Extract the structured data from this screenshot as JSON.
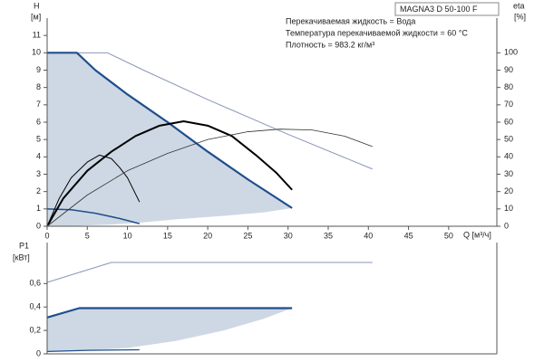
{
  "chart_data": [
    {
      "type": "line",
      "model": "MAGNA3 D 50-100 F",
      "notes": [
        "Перекачиваемая жидкость = Вода",
        "Температура перекачиваемой жидкости = 60 °C",
        "Плотность = 983.2 кг/м³"
      ],
      "y_label": "H",
      "y_unit": "[м]",
      "y2_label": "eta",
      "y2_unit": "[%]",
      "x_label": "Q [м³/ч]",
      "xlim": [
        0,
        56
      ],
      "xticks": [
        0,
        5,
        10,
        15,
        20,
        25,
        30,
        35,
        40,
        45,
        50
      ],
      "ylim": [
        0,
        12
      ],
      "yticks": [
        0,
        1,
        2,
        3,
        4,
        5,
        6,
        7,
        8,
        9,
        10,
        11
      ],
      "y2lim": [
        0,
        120
      ],
      "y2ticks": [
        0,
        10,
        20,
        30,
        40,
        50,
        60,
        70,
        80,
        90,
        100
      ],
      "series": [
        {
          "kind": "area",
          "color": "#cdd8e4",
          "x": [
            0,
            3.7,
            6,
            10,
            15,
            20,
            25,
            30.5,
            27,
            22,
            16,
            11.5,
            8,
            4,
            0
          ],
          "values": [
            10,
            10,
            9,
            7.6,
            6,
            4.3,
            2.7,
            1.05,
            0.8,
            0.6,
            0.4,
            0.2,
            0.1,
            0.03,
            0
          ]
        },
        {
          "color": "#8a96b8",
          "line_width": 1,
          "x": [
            0,
            7.5,
            12,
            20,
            30,
            40.5
          ],
          "values": [
            10,
            10,
            9,
            7.3,
            5.3,
            3.3
          ]
        },
        {
          "color": "#1f4e8c",
          "line_width": 2.2,
          "x": [
            0,
            3.7,
            6,
            10,
            15,
            20,
            25,
            30.5
          ],
          "values": [
            10,
            10,
            9,
            7.6,
            6,
            4.3,
            2.7,
            1.05
          ]
        },
        {
          "color": "#1f4e8c",
          "line_width": 1.5,
          "x": [
            0,
            3,
            6,
            9,
            11.5
          ],
          "values": [
            1,
            0.95,
            0.75,
            0.45,
            0.15
          ]
        },
        {
          "axis": "y2",
          "color": "#000000",
          "line_width": 2,
          "x": [
            0,
            2,
            5,
            8,
            11,
            14,
            17,
            20,
            23,
            26,
            28.5,
            30.5
          ],
          "values": [
            0,
            16,
            32,
            43,
            52,
            58,
            60.5,
            58,
            52,
            41,
            31,
            21
          ]
        },
        {
          "axis": "y2",
          "color": "#000000",
          "line_width": 1,
          "x": [
            0,
            1.5,
            3,
            5,
            6.5,
            8,
            9,
            10,
            11.5
          ],
          "values": [
            0,
            16,
            28,
            37,
            41,
            39,
            34,
            28,
            14
          ]
        },
        {
          "axis": "y2",
          "color": "#333333",
          "line_width": 0.8,
          "x": [
            0,
            5,
            10,
            15,
            20,
            25,
            29,
            33,
            37,
            40.5
          ],
          "values": [
            0,
            18,
            32,
            42,
            50,
            54.5,
            56,
            55.5,
            52,
            46
          ]
        }
      ]
    },
    {
      "type": "line",
      "y_label": "P1",
      "y_unit": "[кВт]",
      "xlim": [
        0,
        56
      ],
      "ylim": [
        0,
        0.95
      ],
      "yticks": [
        0,
        {
          "value": 0.2,
          "label": "0,2"
        },
        {
          "value": 0.4,
          "label": "0,4"
        },
        {
          "value": 0.6,
          "label": "0,6"
        }
      ],
      "series": [
        {
          "kind": "area",
          "color": "#cdd8e4",
          "x": [
            0,
            4,
            10,
            20,
            30.5,
            27,
            22,
            16,
            10,
            5,
            0
          ],
          "values": [
            0.31,
            0.39,
            0.39,
            0.39,
            0.39,
            0.3,
            0.2,
            0.11,
            0.05,
            0.03,
            0.02
          ]
        },
        {
          "color": "#8a96b8",
          "line_width": 1,
          "x": [
            0,
            8,
            20,
            40.5
          ],
          "values": [
            0.61,
            0.78,
            0.78,
            0.78
          ]
        },
        {
          "color": "#1f4e8c",
          "line_width": 2.2,
          "x": [
            0,
            4,
            15,
            30.5
          ],
          "values": [
            0.31,
            0.39,
            0.39,
            0.39
          ]
        },
        {
          "color": "#1f4e8c",
          "line_width": 1.2,
          "x": [
            0,
            5,
            11.5
          ],
          "values": [
            0.02,
            0.03,
            0.035
          ]
        }
      ]
    }
  ]
}
